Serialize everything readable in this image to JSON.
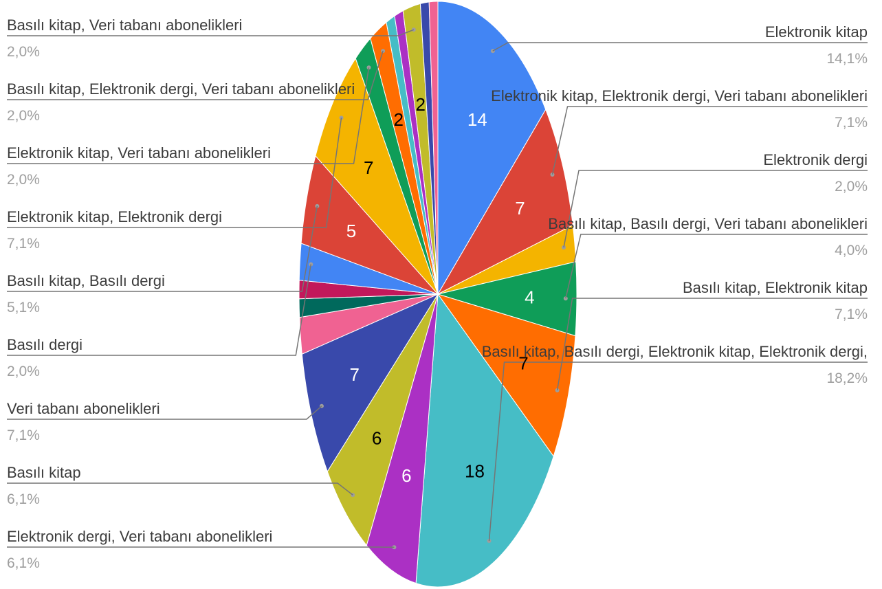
{
  "chart_data": {
    "type": "pie",
    "title": "",
    "start_angle_deg": 0,
    "slices": [
      {
        "label": "Elektronik kitap",
        "value": 14,
        "percent": "14,1%",
        "color": "#4285f4",
        "value_color": "#ffffff",
        "show_value": true,
        "legend": {
          "side": "right",
          "row": 0
        }
      },
      {
        "label": "Elektronik kitap, Elektronik dergi, Veri tabanı abonelikleri",
        "value": 7,
        "percent": "7,1%",
        "color": "#db4437",
        "value_color": "#ffffff",
        "show_value": true,
        "legend": {
          "side": "right",
          "row": 1
        }
      },
      {
        "label": "Elektronik dergi",
        "value": 2,
        "percent": "2,0%",
        "color": "#f4b400",
        "value_color": "#ffffff",
        "show_value": false,
        "legend": {
          "side": "right",
          "row": 2
        }
      },
      {
        "label": "Basılı kitap, Basılı dergi, Veri tabanı abonelikleri",
        "value": 4,
        "percent": "4,0%",
        "color": "#0f9d58",
        "value_color": "#ffffff",
        "show_value": true,
        "legend": {
          "side": "right",
          "row": 3
        }
      },
      {
        "label": "Basılı kitap, Elektronik kitap",
        "value": 7,
        "percent": "7,1%",
        "color": "#ff6d01",
        "value_color": "#000000",
        "show_value": true,
        "legend": {
          "side": "right",
          "row": 4
        }
      },
      {
        "label": "Basılı kitap, Basılı dergi, Elektronik kitap, Elektronik dergi,",
        "value": 18,
        "percent": "18,2%",
        "color": "#46bdc6",
        "value_color": "#000000",
        "show_value": true,
        "legend": {
          "side": "right",
          "row": 5
        }
      },
      {
        "label": "Elektronik dergi, Veri tabanı abonelikleri",
        "value": 6,
        "percent": "6,1%",
        "color": "#ab30c4",
        "value_color": "#ffffff",
        "show_value": true,
        "legend": {
          "side": "left",
          "row": 8
        }
      },
      {
        "label": "Basılı kitap",
        "value": 6,
        "percent": "6,1%",
        "color": "#c1bc2a",
        "value_color": "#000000",
        "show_value": true,
        "legend": {
          "side": "left",
          "row": 7
        }
      },
      {
        "label": "Veri tabanı abonelikleri",
        "value": 7,
        "percent": "7,1%",
        "color": "#3949ab",
        "value_color": "#ffffff",
        "show_value": true,
        "legend": {
          "side": "left",
          "row": 6
        }
      },
      {
        "label": "",
        "value": 2,
        "percent": "",
        "color": "#f06292",
        "value_color": "#ffffff",
        "show_value": false,
        "legend": null
      },
      {
        "label": "",
        "value": 1,
        "percent": "",
        "color": "#00695c",
        "value_color": "#ffffff",
        "show_value": false,
        "legend": null
      },
      {
        "label": "",
        "value": 1,
        "percent": "",
        "color": "#c2185b",
        "value_color": "#ffffff",
        "show_value": false,
        "legend": null
      },
      {
        "label": "Basılı dergi",
        "value": 2,
        "percent": "2,0%",
        "color": "#4285f4",
        "value_color": "#ffffff",
        "show_value": false,
        "legend": {
          "side": "left",
          "row": 5
        }
      },
      {
        "label": "Basılı kitap, Basılı dergi",
        "value": 5,
        "percent": "5,1%",
        "color": "#db4437",
        "value_color": "#ffffff",
        "show_value": true,
        "legend": {
          "side": "left",
          "row": 4
        }
      },
      {
        "label": "Elektronik kitap, Elektronik dergi",
        "value": 7,
        "percent": "7,1%",
        "color": "#f4b400",
        "value_color": "#000000",
        "show_value": true,
        "legend": {
          "side": "left",
          "row": 3
        }
      },
      {
        "label": "Elektronik kitap, Veri tabanı abonelikleri",
        "value": 2,
        "percent": "2,0%",
        "color": "#0f9d58",
        "value_color": "#ffffff",
        "show_value": false,
        "legend": {
          "side": "left",
          "row": 2
        }
      },
      {
        "label": "Basılı kitap, Elektronik dergi, Veri tabanı abonelikleri",
        "value": 2,
        "percent": "2,0%",
        "color": "#ff6d01",
        "value_color": "#000000",
        "show_value": true,
        "legend": {
          "side": "left",
          "row": 1
        }
      },
      {
        "label": "",
        "value": 1,
        "percent": "",
        "color": "#46bdc6",
        "value_color": "#ffffff",
        "show_value": false,
        "legend": null
      },
      {
        "label": "",
        "value": 1,
        "percent": "",
        "color": "#ab30c4",
        "value_color": "#ffffff",
        "show_value": false,
        "legend": null
      },
      {
        "label": "Basılı kitap, Veri tabanı abonelikleri",
        "value": 2,
        "percent": "2,0%",
        "color": "#c1bc2a",
        "value_color": "#000000",
        "show_value": true,
        "legend": {
          "side": "left",
          "row": 0
        }
      },
      {
        "label": "",
        "value": 1,
        "percent": "",
        "color": "#3949ab",
        "value_color": "#ffffff",
        "show_value": false,
        "legend": null
      },
      {
        "label": "",
        "value": 1,
        "percent": "",
        "color": "#f06292",
        "value_color": "#ffffff",
        "show_value": false,
        "legend": null
      }
    ],
    "legend_position": "labeled leader lines on left and right"
  }
}
